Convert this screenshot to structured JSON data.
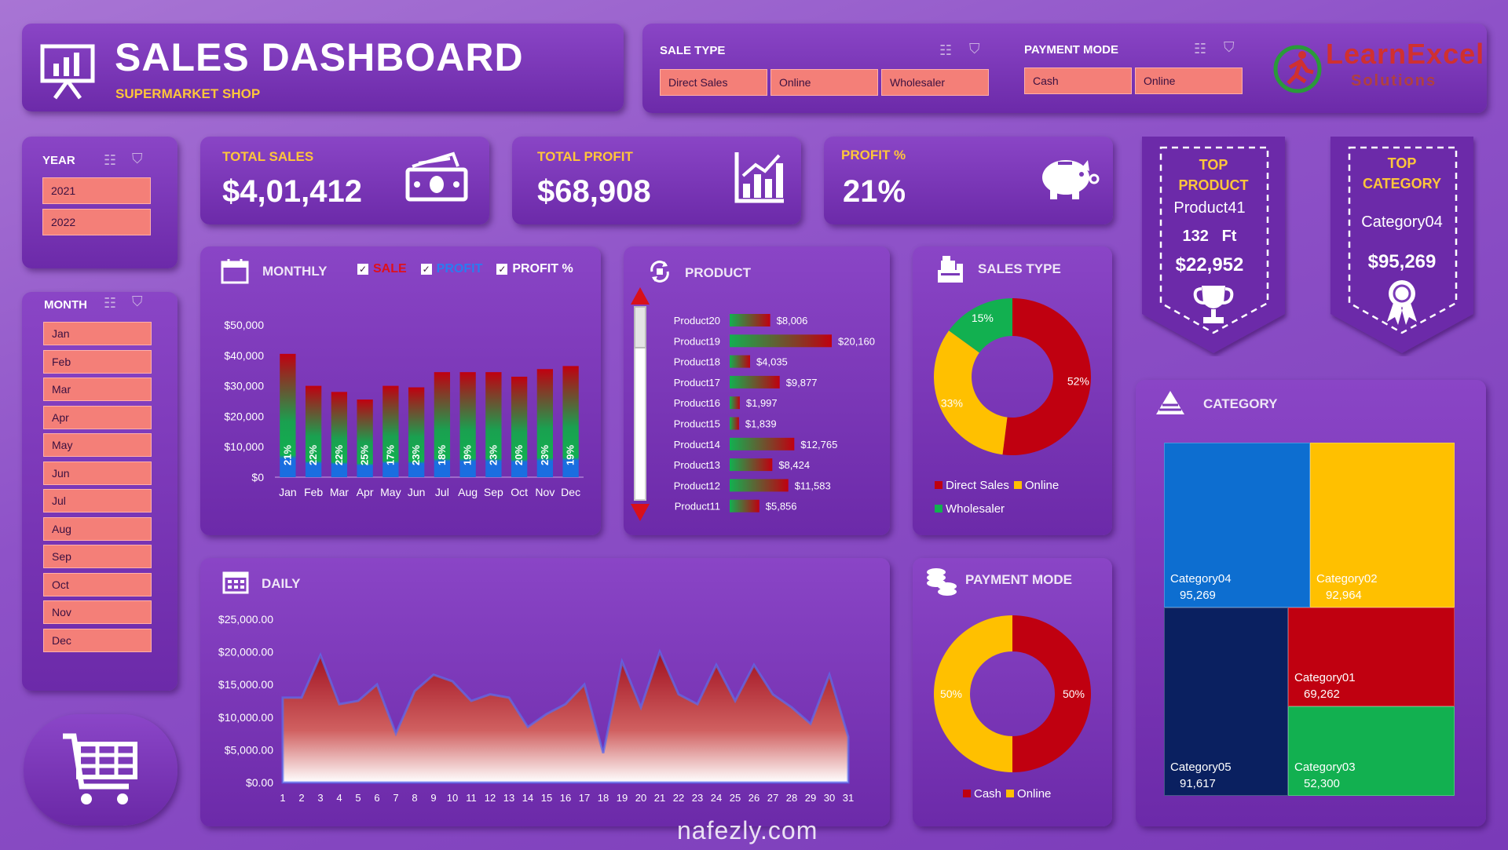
{
  "header": {
    "title": "SALES DASHBOARD",
    "subtitle": "SUPERMARKET SHOP"
  },
  "sale_type": {
    "label": "SALE TYPE",
    "options": [
      "Direct Sales",
      "Online",
      "Wholesaler"
    ]
  },
  "payment_mode": {
    "label": "PAYMENT MODE",
    "options": [
      "Cash",
      "Online"
    ]
  },
  "logo": {
    "line1": "LearnExcel",
    "line2": "Solutions"
  },
  "year": {
    "label": "YEAR",
    "options": [
      "2021",
      "2022"
    ]
  },
  "month": {
    "label": "MONTH",
    "options": [
      "Jan",
      "Feb",
      "Mar",
      "Apr",
      "May",
      "Jun",
      "Jul",
      "Aug",
      "Sep",
      "Oct",
      "Nov",
      "Dec"
    ]
  },
  "kpis": {
    "total_sales": {
      "label": "TOTAL SALES",
      "value": "$4,01,412"
    },
    "total_profit": {
      "label": "TOTAL PROFIT",
      "value": "$68,908"
    },
    "profit_pct": {
      "label": "PROFIT %",
      "value": "21%"
    }
  },
  "top_product": {
    "title1": "TOP",
    "title2": "PRODUCT",
    "name": "Product41",
    "qty": "132",
    "unit": "Ft",
    "value": "$22,952"
  },
  "top_category": {
    "title1": "TOP",
    "title2": "CATEGORY",
    "name": "Category04",
    "value": "$95,269"
  },
  "monthly": {
    "title": "MONTHLY",
    "checks": [
      "SALE",
      "PROFIT",
      "PROFIT %"
    ],
    "check_colors": [
      "#e0101a",
      "#2a7cf0",
      "#ffffff"
    ]
  },
  "product_panel": {
    "title": "PRODUCT"
  },
  "sales_type_panel": {
    "title": "SALES TYPE"
  },
  "daily_panel": {
    "title": "DAILY"
  },
  "payment_panel": {
    "title": "PAYMENT MODE"
  },
  "category_panel": {
    "title": "CATEGORY"
  },
  "watermark": {
    "domain": "nafezly.com"
  },
  "chart_data": [
    {
      "id": "monthly",
      "type": "bar",
      "categories": [
        "Jan",
        "Feb",
        "Mar",
        "Apr",
        "May",
        "Jun",
        "Jul",
        "Aug",
        "Sep",
        "Oct",
        "Nov",
        "Dec"
      ],
      "values": [
        40500,
        30000,
        28000,
        25500,
        30000,
        29500,
        34500,
        34500,
        34500,
        33000,
        35500,
        36500
      ],
      "labels": [
        "21%",
        "22%",
        "22%",
        "25%",
        "17%",
        "23%",
        "18%",
        "19%",
        "23%",
        "20%",
        "23%",
        "19%"
      ],
      "yticks": [
        "$50,000",
        "$40,000",
        "$30,000",
        "$20,000",
        "$10,000",
        "$0"
      ],
      "ylim": [
        0,
        50000
      ]
    },
    {
      "id": "product",
      "type": "bar",
      "orientation": "horizontal",
      "categories": [
        "Product20",
        "Product19",
        "Product18",
        "Product17",
        "Product16",
        "Product15",
        "Product14",
        "Product13",
        "Product12",
        "Product11"
      ],
      "values": [
        8006,
        20160,
        4035,
        9877,
        1997,
        1839,
        12765,
        8424,
        11583,
        5856
      ],
      "labels": [
        "$8,006",
        "$20,160",
        "$4,035",
        "$9,877",
        "$1,997",
        "$1,839",
        "$12,765",
        "$8,424",
        "$11,583",
        "$5,856"
      ]
    },
    {
      "id": "sales_type",
      "type": "pie",
      "categories": [
        "Direct Sales",
        "Online",
        "Wholesaler"
      ],
      "values": [
        52,
        33,
        15
      ],
      "labels": [
        "52%",
        "33%",
        "15%"
      ],
      "colors": [
        "#c00010",
        "#ffc000",
        "#12b050"
      ]
    },
    {
      "id": "daily",
      "type": "area",
      "x": [
        1,
        2,
        3,
        4,
        5,
        6,
        7,
        8,
        9,
        10,
        11,
        12,
        13,
        14,
        15,
        16,
        17,
        18,
        19,
        20,
        21,
        22,
        23,
        24,
        25,
        26,
        27,
        28,
        29,
        30,
        31
      ],
      "values": [
        13000,
        13000,
        19500,
        12000,
        12500,
        15000,
        7500,
        14000,
        16500,
        15500,
        12500,
        13500,
        13000,
        8500,
        10500,
        12000,
        15000,
        4500,
        18500,
        11500,
        20000,
        13500,
        12000,
        18000,
        12500,
        18000,
        13500,
        11500,
        9000,
        16500,
        7000
      ],
      "yticks": [
        "$25,000.00",
        "$20,000.00",
        "$15,000.00",
        "$10,000.00",
        "$5,000.00",
        "$0.00"
      ],
      "ylim": [
        0,
        25000
      ]
    },
    {
      "id": "payment",
      "type": "pie",
      "categories": [
        "Cash",
        "Online"
      ],
      "values": [
        50,
        50
      ],
      "labels": [
        "50%",
        "50%"
      ],
      "colors": [
        "#c00010",
        "#ffc000"
      ]
    },
    {
      "id": "category",
      "type": "treemap",
      "categories": [
        "Category04",
        "Category02",
        "Category05",
        "Category01",
        "Category03"
      ],
      "values": [
        95269,
        92964,
        91617,
        69262,
        52300
      ],
      "labels": [
        "95,269",
        "92,964",
        "91,617",
        "69,262",
        "52,300"
      ],
      "colors": [
        "#0d6ed0",
        "#ffc000",
        "#0a2060",
        "#c00010",
        "#12b050"
      ]
    }
  ]
}
